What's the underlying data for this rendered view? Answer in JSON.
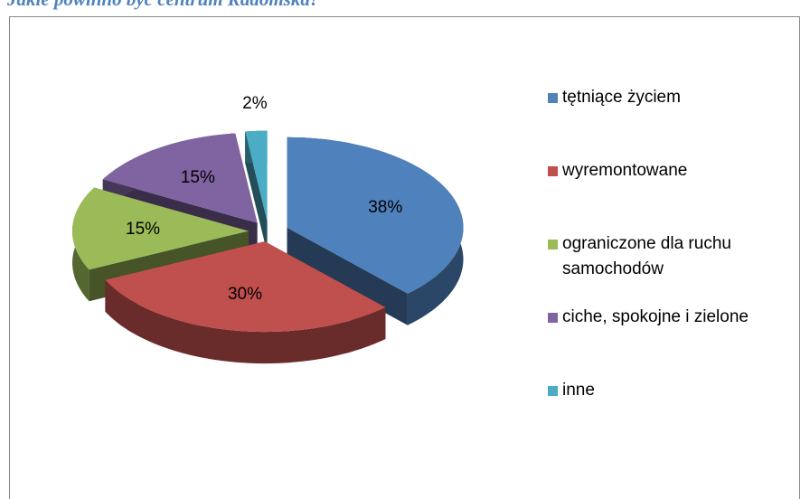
{
  "chart_data": {
    "type": "pie",
    "title": "Jakie powinno być centrum Radomska?",
    "categories": [
      "tętniące życiem",
      "wyremontowane",
      "ograniczone dla ruchu samochodów",
      "ciche, spokojne i zielone",
      "inne"
    ],
    "values": [
      38,
      30,
      15,
      15,
      2
    ],
    "value_labels": [
      "38%",
      "30%",
      "15%",
      "15%",
      "2%"
    ],
    "colors": [
      "#4f81bd",
      "#c0504d",
      "#9bbb59",
      "#8064a2",
      "#4bacc6"
    ],
    "legend": "right"
  }
}
